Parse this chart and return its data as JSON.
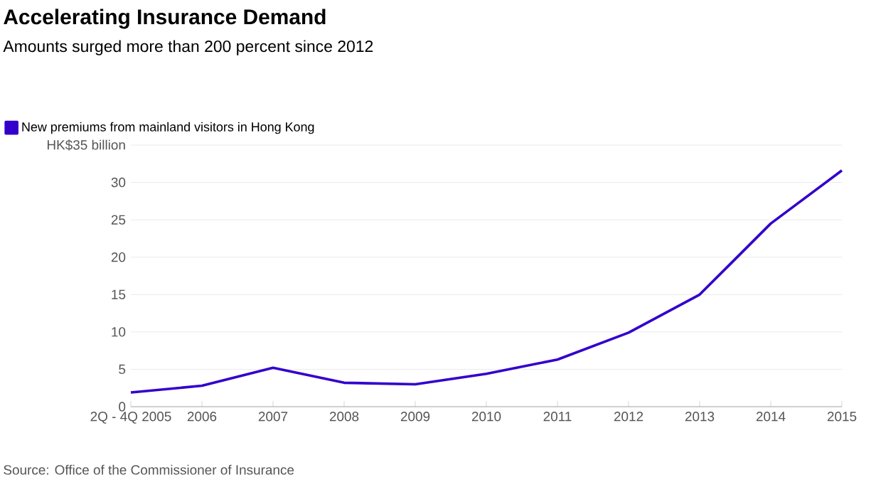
{
  "chart_data": {
    "type": "line",
    "title": "Accelerating Insurance Demand",
    "subtitle": "Amounts surged more than 200 percent since 2012",
    "categories": [
      "2Q - 4Q 2005",
      "2006",
      "2007",
      "2008",
      "2009",
      "2010",
      "2011",
      "2012",
      "2013",
      "2014",
      "2015"
    ],
    "series": [
      {
        "name": "New premiums from mainland visitors in Hong Kong",
        "color": "#3300cc",
        "values": [
          1.9,
          2.8,
          5.2,
          3.2,
          3.0,
          4.4,
          6.3,
          9.9,
          15.0,
          24.5,
          31.6
        ]
      }
    ],
    "ylim": [
      0,
      35
    ],
    "yticks": [
      0,
      5,
      10,
      15,
      20,
      25,
      30,
      {
        "value": 35,
        "label": "HK$35 billion"
      }
    ],
    "grid": "y",
    "legend": "top left",
    "line_style": "solid",
    "marker": "none",
    "annotations": [
      "Source: Office of the Commissioner of Insurance"
    ]
  }
}
